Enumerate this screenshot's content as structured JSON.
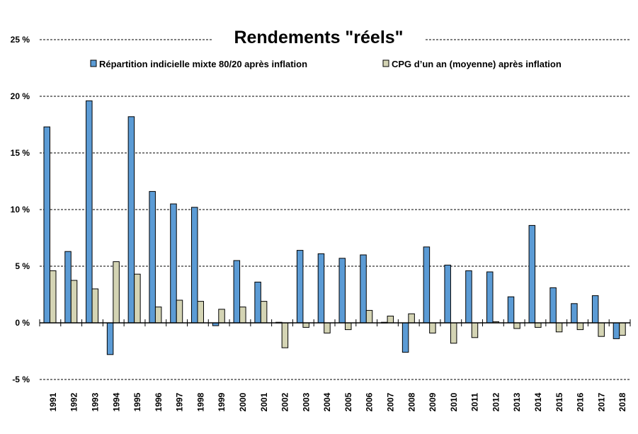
{
  "chart_data": {
    "type": "bar",
    "title": "Rendements \"réels\"",
    "xlabel": "",
    "ylabel": "",
    "ylim": [
      -5,
      25
    ],
    "yticks": [
      -5,
      0,
      5,
      10,
      15,
      20,
      25
    ],
    "ytick_labels": [
      "-5 %",
      "0 %",
      "5 %",
      "10 %",
      "15 %",
      "20 %",
      "25 %"
    ],
    "grid": true,
    "legend_placement": "top",
    "categories": [
      "1991",
      "1992",
      "1993",
      "1994",
      "1995",
      "1996",
      "1997",
      "1998",
      "1999",
      "2000",
      "2001",
      "2002",
      "2003",
      "2004",
      "2005",
      "2006",
      "2007",
      "2008",
      "2009",
      "2010",
      "2011",
      "2012",
      "2013",
      "2014",
      "2015",
      "2016",
      "2017",
      "2018"
    ],
    "series": [
      {
        "name": "Répartition indicielle mixte 80/20 après inflation",
        "color": "#5B9BD5",
        "values": [
          17.3,
          6.3,
          19.6,
          -2.8,
          18.2,
          11.6,
          10.5,
          10.2,
          -0.25,
          5.5,
          3.6,
          0.05,
          6.4,
          6.1,
          5.7,
          6.0,
          0.05,
          -2.6,
          6.7,
          5.1,
          4.6,
          4.5,
          2.3,
          8.6,
          3.1,
          1.7,
          2.4,
          -1.4
        ]
      },
      {
        "name": "CPG d’un an (moyenne) après inflation",
        "color": "#D4D4B4",
        "values": [
          4.6,
          3.75,
          3.0,
          5.4,
          4.3,
          1.4,
          2.0,
          1.9,
          1.2,
          1.4,
          1.9,
          -2.2,
          -0.4,
          -0.9,
          -0.6,
          1.1,
          0.6,
          0.8,
          -0.9,
          -1.8,
          -1.3,
          0.1,
          -0.5,
          -0.4,
          -0.8,
          -0.6,
          -1.2,
          -1.1
        ]
      }
    ]
  }
}
